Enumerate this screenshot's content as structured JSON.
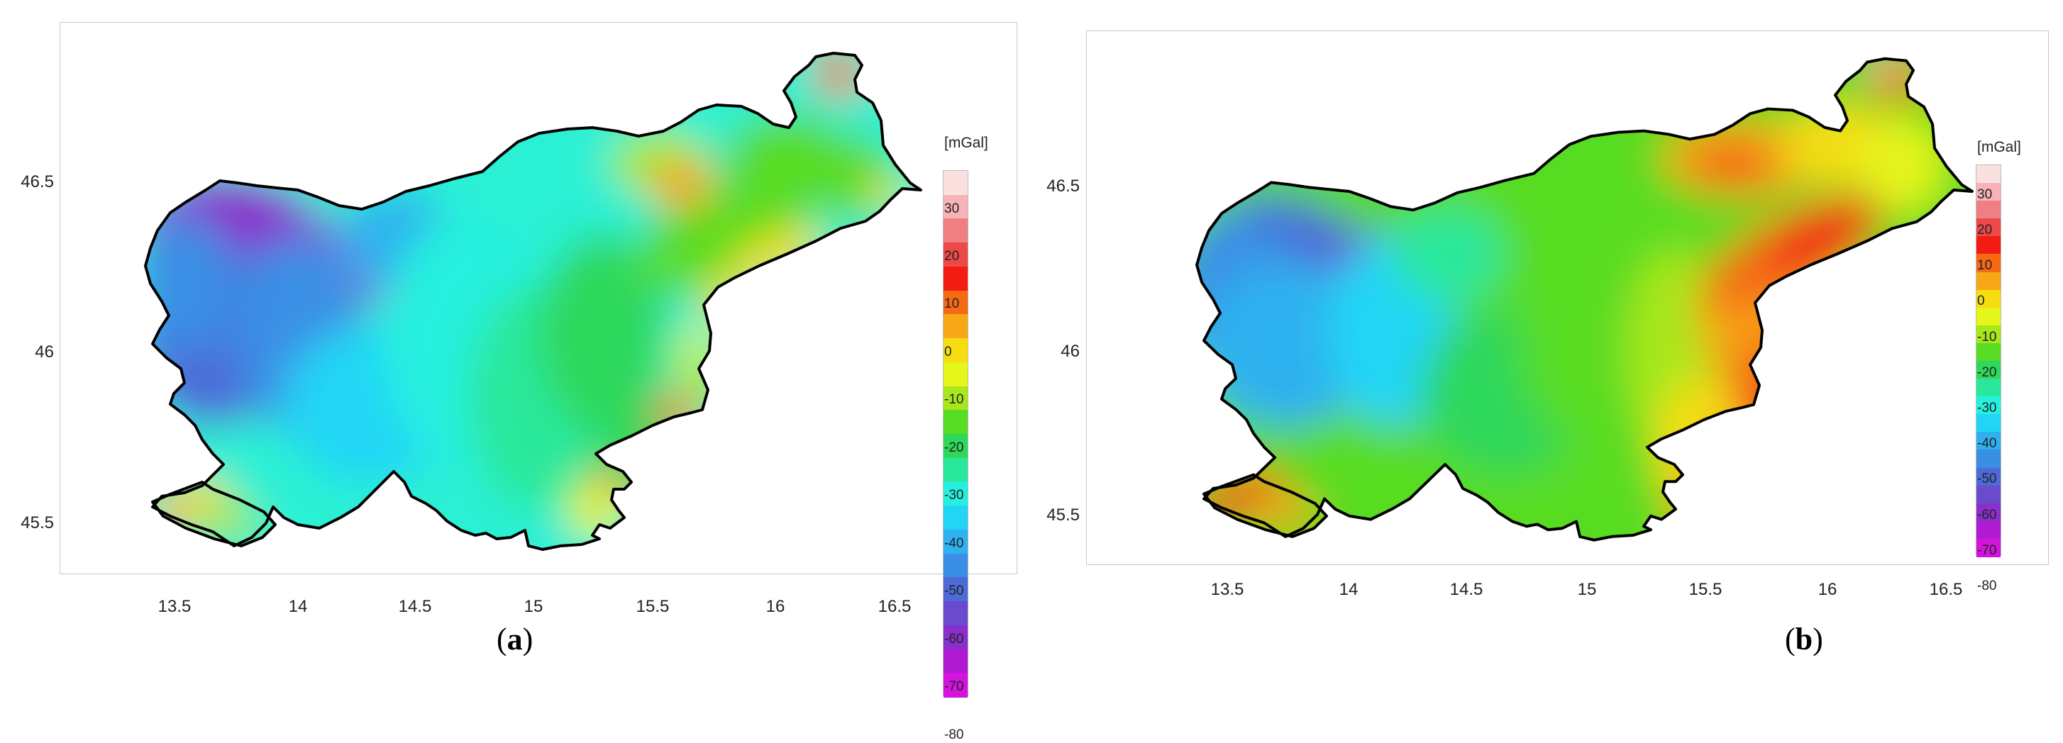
{
  "legend": {
    "unit": "[mGal]",
    "labels": [
      "30",
      "20",
      "10",
      "0",
      "-10",
      "-20",
      "-30",
      "-40",
      "-50",
      "-60",
      "-70",
      "-80"
    ],
    "colors": [
      "#fbe0e0",
      "#f7b3b7",
      "#f07f84",
      "#ec4a48",
      "#f21c12",
      "#f56a13",
      "#f7a816",
      "#f5dd12",
      "#e6f51a",
      "#a7e71c",
      "#58dc24",
      "#2fd85b",
      "#2ae89b",
      "#25f0de",
      "#22d5f5",
      "#2fb1ef",
      "#3a8fe5",
      "#4d6ad8",
      "#6a4bce",
      "#8a2fcc",
      "#b01bd2",
      "#d214dc"
    ]
  },
  "axes": {
    "x_ticks": [
      "13.5",
      "14",
      "14.5",
      "15",
      "15.5",
      "16",
      "16.5"
    ],
    "y_ticks": [
      "46.5",
      "46",
      "45.5"
    ]
  },
  "panels": [
    {
      "caption_open": "(",
      "caption_letter": "a",
      "caption_close": ")"
    },
    {
      "caption_open": "(",
      "caption_letter": "b",
      "caption_close": ")"
    }
  ]
}
